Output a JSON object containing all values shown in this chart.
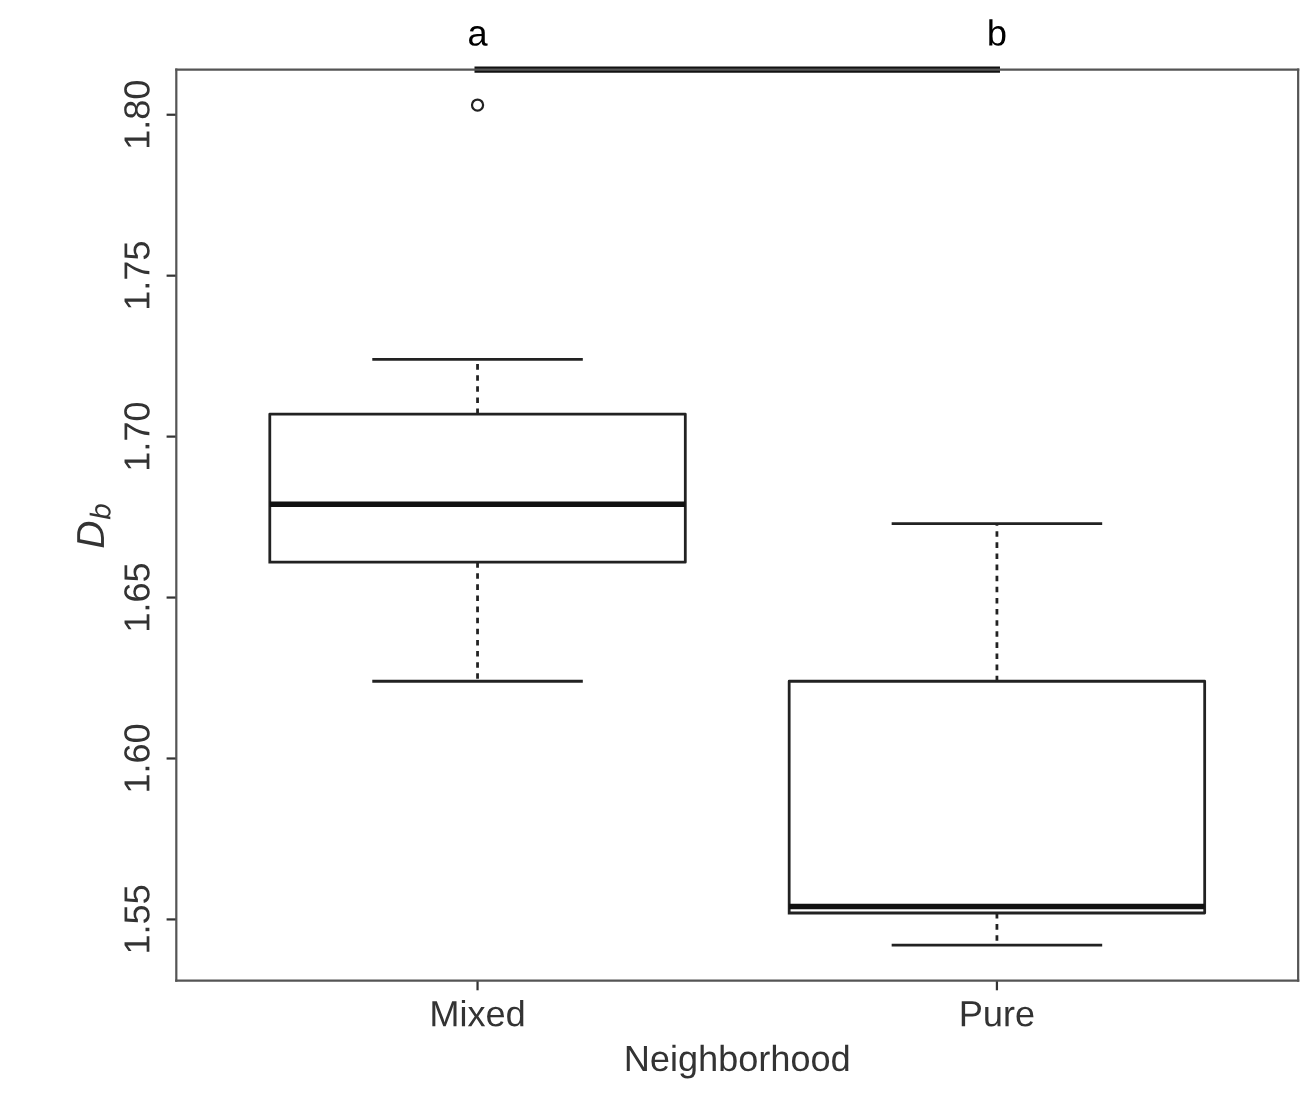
{
  "chart_data": {
    "type": "box",
    "xlabel": "Neighborhood",
    "ylabel": "D$_{b}$",
    "categories": [
      "Mixed",
      "Pure"
    ],
    "boxes": [
      {
        "low": 1.624,
        "q1": 1.661,
        "median": 1.679,
        "q3": 1.707,
        "high": 1.724,
        "outliers": [
          1.803
        ]
      },
      {
        "low": 1.542,
        "q1": 1.552,
        "median": 1.554,
        "q3": 1.624,
        "high": 1.673
      }
    ],
    "ylim": [
      1.531,
      1.814
    ],
    "yticks": [
      1.55,
      {
        "value": 1.6,
        "label": "1.60"
      },
      1.65,
      {
        "value": 1.7,
        "label": "1.70"
      },
      1.75,
      {
        "value": 1.8,
        "label": "1.80"
      }
    ],
    "grid": false,
    "annotations": [
      "a",
      "b"
    ]
  }
}
